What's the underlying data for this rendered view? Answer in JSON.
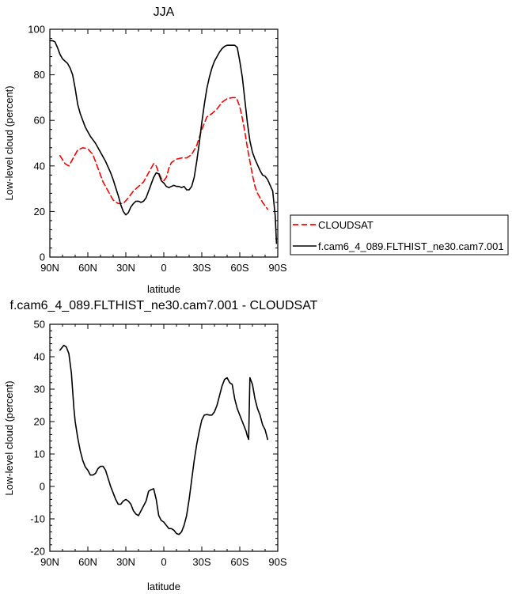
{
  "chart_data": [
    {
      "type": "line",
      "title": "JJA",
      "xlabel": "latitude",
      "ylabel": "Low-level cloud (percent)",
      "xlim": [
        90,
        -90
      ],
      "ylim": [
        0,
        100
      ],
      "xticks": [
        90,
        60,
        30,
        0,
        -30,
        -60,
        -90
      ],
      "xtick_labels": [
        "90N",
        "60N",
        "30N",
        "0",
        "30S",
        "60S",
        "90S"
      ],
      "yticks": [
        0,
        20,
        40,
        60,
        80,
        100
      ],
      "ytick_labels": [
        "0",
        "20",
        "40",
        "60",
        "80",
        "100"
      ],
      "legend": {
        "placement": "right, outside plot"
      },
      "series": [
        {
          "name": "CLOUDSAT",
          "color": "#ff0000",
          "dash": "dashed",
          "x": [
            82,
            78,
            75,
            72,
            68,
            64,
            60,
            56,
            52,
            48,
            44,
            40,
            36,
            32,
            28,
            24,
            20,
            16,
            12,
            8,
            6,
            4,
            2,
            0,
            -2,
            -4,
            -6,
            -10,
            -14,
            -18,
            -22,
            -26,
            -30,
            -34,
            -38,
            -42,
            -46,
            -50,
            -54,
            -57,
            -58,
            -60,
            -62,
            -64,
            -66,
            -68,
            -70,
            -72,
            -74,
            -76,
            -78,
            -80,
            -82
          ],
          "y": [
            44.5,
            41,
            40,
            43,
            47,
            48,
            47.5,
            45,
            39,
            33,
            29,
            25,
            23.5,
            23.5,
            26,
            29,
            31,
            33,
            37,
            41,
            40,
            37,
            34.5,
            33.5,
            35,
            39,
            41.5,
            43,
            43.5,
            43.5,
            45,
            49,
            56,
            61.5,
            63,
            65,
            68,
            69.5,
            70,
            70,
            69,
            66,
            61,
            55,
            48,
            42,
            36,
            31,
            28,
            26,
            24,
            22.5,
            21
          ]
        },
        {
          "name": "f.cam6_4_089.FLTHIST_ne30.cam7.001",
          "color": "#000000",
          "dash": "solid",
          "x": [
            90,
            88,
            86,
            84,
            82,
            80,
            78,
            76,
            74,
            72,
            70,
            68,
            66,
            64,
            62,
            60,
            58,
            56,
            54,
            52,
            50,
            48,
            46,
            44,
            42,
            40,
            38,
            36,
            34,
            32,
            30,
            28,
            26,
            24,
            22,
            20,
            18,
            16,
            14,
            12,
            10,
            8,
            6,
            4,
            2,
            0,
            -2,
            -4,
            -6,
            -8,
            -10,
            -12,
            -14,
            -16,
            -18,
            -20,
            -22,
            -24,
            -26,
            -28,
            -30,
            -32,
            -34,
            -36,
            -38,
            -40,
            -42,
            -44,
            -46,
            -48,
            -50,
            -52,
            -54,
            -56,
            -58,
            -60,
            -62,
            -64,
            -66,
            -68,
            -70,
            -72,
            -74,
            -76,
            -78,
            -80,
            -82,
            -84,
            -86,
            -88,
            -89
          ],
          "y": [
            95,
            95,
            94.5,
            92,
            89,
            87,
            86,
            85,
            83,
            80,
            74,
            67,
            63,
            60,
            57,
            55,
            53,
            51.5,
            50,
            48,
            46,
            44,
            42,
            39.5,
            37,
            34,
            30.5,
            27,
            23,
            20,
            18.5,
            19.5,
            22,
            23.5,
            24.5,
            24.5,
            24,
            24.5,
            26,
            29,
            32,
            35,
            37,
            36.5,
            33.5,
            32.5,
            31,
            30.5,
            31,
            31.5,
            31,
            31,
            30.5,
            31,
            29.5,
            29.5,
            31,
            35,
            42,
            50,
            59,
            67,
            74,
            79,
            83,
            86,
            88,
            90,
            91.5,
            92.5,
            93,
            93,
            93,
            93,
            92,
            86,
            79,
            69,
            59,
            51,
            46,
            43,
            40.5,
            38,
            36,
            35.5,
            34,
            31.5,
            29,
            18,
            6
          ]
        }
      ]
    },
    {
      "type": "line",
      "title": "f.cam6_4_089.FLTHIST_ne30.cam7.001 - CLOUDSAT",
      "xlabel": "latitude",
      "ylabel": "Low-level cloud (percent)",
      "xlim": [
        90,
        -90
      ],
      "ylim": [
        -20,
        50
      ],
      "xticks": [
        90,
        60,
        30,
        0,
        -30,
        -60,
        -90
      ],
      "xtick_labels": [
        "90N",
        "60N",
        "30N",
        "0",
        "30S",
        "60S",
        "90S"
      ],
      "yticks": [
        -20,
        -10,
        0,
        10,
        20,
        30,
        40,
        50
      ],
      "ytick_labels": [
        "-20",
        "-10",
        "0",
        "10",
        "20",
        "30",
        "40",
        "50"
      ],
      "series": [
        {
          "color": "#000000",
          "dash": "solid",
          "x": [
            82,
            79,
            77,
            75,
            73,
            71,
            70,
            68,
            66,
            64,
            62,
            60,
            58,
            56,
            54,
            52,
            50,
            48,
            46,
            44,
            42,
            40,
            38,
            36,
            34,
            32,
            30,
            28,
            26,
            24,
            22,
            20,
            18,
            16,
            14,
            12,
            10,
            8,
            6,
            4,
            2,
            0,
            -2,
            -4,
            -6,
            -8,
            -10,
            -12,
            -14,
            -16,
            -18,
            -20,
            -22,
            -24,
            -26,
            -28,
            -30,
            -32,
            -34,
            -36,
            -38,
            -40,
            -42,
            -44,
            -46,
            -48,
            -50,
            -52,
            -54,
            -56,
            -58,
            -60,
            -62,
            -64,
            -65,
            -66,
            -67,
            -68,
            -70,
            -72,
            -74,
            -76,
            -78,
            -80,
            -82
          ],
          "y": [
            42,
            43.5,
            43,
            41,
            35,
            24,
            20,
            15,
            11,
            8,
            6,
            5,
            3.5,
            3.5,
            4,
            5.5,
            6.2,
            6.2,
            5,
            2.5,
            0,
            -2,
            -4,
            -5.5,
            -5.5,
            -4.5,
            -4,
            -4.5,
            -5.5,
            -7.5,
            -8.5,
            -9,
            -7.5,
            -6,
            -4.5,
            -1.5,
            -1,
            -0.7,
            -4,
            -9,
            -10.5,
            -11,
            -12,
            -13,
            -13,
            -13.5,
            -14.5,
            -14.8,
            -14,
            -12,
            -9,
            -4,
            2,
            8,
            13,
            17,
            20.5,
            22,
            22.2,
            22,
            22,
            23,
            25,
            28,
            31,
            33,
            33.5,
            32,
            31.5,
            27,
            24,
            22,
            20,
            18,
            17,
            15.5,
            14.5,
            33.5,
            31.5,
            27,
            24,
            22,
            19,
            17.5,
            14.5
          ]
        }
      ]
    }
  ]
}
